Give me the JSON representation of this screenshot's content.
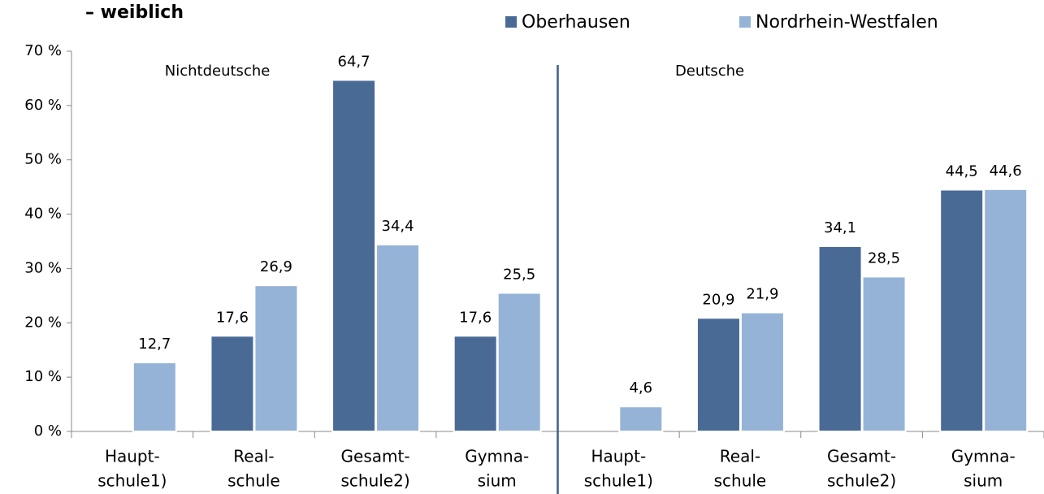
{
  "chart_data": {
    "type": "bar",
    "title": "– weiblich",
    "annotations": [
      "Nichtdeutsche",
      "Deutsche"
    ],
    "categories": [
      [
        "Haupt-",
        "schule1)"
      ],
      [
        "Real-",
        "schule"
      ],
      [
        "Gesamt-",
        "schule2)"
      ],
      [
        "Gymna-",
        "sium"
      ],
      [
        "Haupt-",
        "schule1)"
      ],
      [
        "Real-",
        "schule"
      ],
      [
        "Gesamt-",
        "schule2)"
      ],
      [
        "Gymna-",
        "sium"
      ]
    ],
    "series": [
      {
        "name": "Oberhausen",
        "color": "#4a6a96",
        "values": [
          null,
          17.6,
          64.7,
          17.6,
          null,
          20.9,
          34.1,
          44.5
        ],
        "value_labels": [
          null,
          "17,6",
          "64,7",
          "17,6",
          null,
          "20,9",
          "34,1",
          "44,5"
        ]
      },
      {
        "name": "Nordrhein-Westfalen",
        "color": "#95b3d7",
        "values": [
          12.7,
          26.9,
          34.4,
          25.5,
          4.6,
          21.9,
          28.5,
          44.6
        ],
        "value_labels": [
          "12,7",
          "26,9",
          "34,4",
          "25,5",
          "4,6",
          "21,9",
          "28,5",
          "44,6"
        ]
      }
    ],
    "ylim": [
      0,
      70
    ],
    "yticks": [
      {
        "value": 0,
        "label": "0 %"
      },
      {
        "value": 10,
        "label": "10 %"
      },
      {
        "value": 20,
        "label": "20 %"
      },
      {
        "value": 30,
        "label": "30 %"
      },
      {
        "value": 40,
        "label": "40 %"
      },
      {
        "value": 50,
        "label": "50 %"
      },
      {
        "value": 60,
        "label": "60 %"
      },
      {
        "value": 70,
        "label": "70 %"
      }
    ]
  }
}
